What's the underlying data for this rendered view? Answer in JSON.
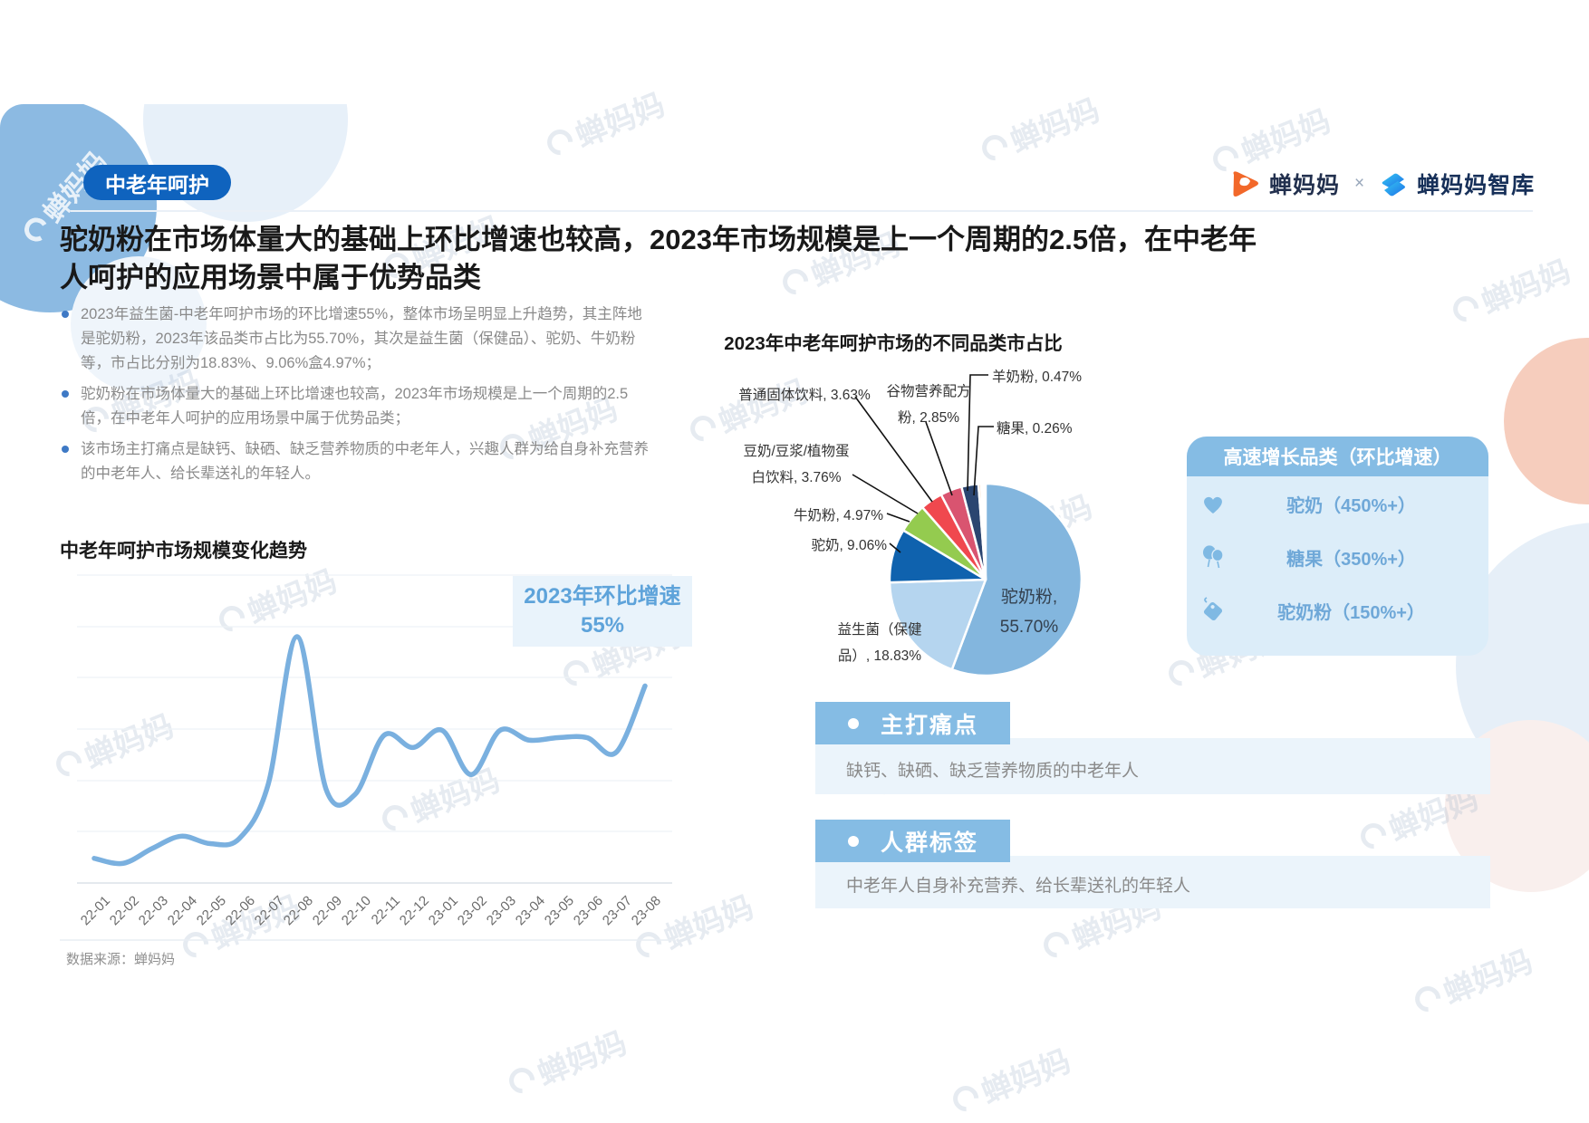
{
  "page": {
    "tag": "中老年呵护",
    "title": "驼奶粉在市场体量大的基础上环比增速也较高，2023年市场规模是上一个周期的2.5倍，在中老年人呵护的应用场景中属于优势品类",
    "source": "数据来源：蝉妈妈",
    "watermark": "蝉妈妈"
  },
  "brand": {
    "left": "蝉妈妈",
    "sep": "×",
    "right": "蝉妈妈智库"
  },
  "bullets": [
    "2023年益生菌-中老年呵护市场的环比增速55%，整体市场呈明显上升趋势，其主阵地是驼奶粉，2023年该品类市占比为55.70%，其次是益生菌（保健品）、驼奶、牛奶粉等，市占比分别为18.83%、9.06%盒4.97%；",
    "驼奶粉在市场体量大的基础上环比增速也较高，2023年市场规模是上一个周期的2.5倍，在中老年人呵护的应用场景中属于优势品类；",
    "该市场主打痛点是缺钙、缺硒、缺乏营养物质的中老年人，兴趣人群为给自身补充营养的中老年人、给长辈送礼的年轻人。"
  ],
  "line_section": {
    "title": "中老年呵护市场规模变化趋势",
    "badge_line1": "2023年环比增速",
    "badge_line2": "55%"
  },
  "pie_section": {
    "title": "2023年中老年呵护市场的不同品类市占比"
  },
  "growth_panel": {
    "title": "高速增长品类（环比增速）",
    "items": [
      {
        "icon": "heart-icon",
        "label": "驼奶（450%+）"
      },
      {
        "icon": "balloons-icon",
        "label": "糖果（350%+）"
      },
      {
        "icon": "tag-icon",
        "label": "驼奶粉（150%+）"
      }
    ]
  },
  "pain_point": {
    "title": "主打痛点",
    "body": "缺钙、缺硒、缺乏营养物质的中老年人"
  },
  "audience": {
    "title": "人群标签",
    "body": "中老年人自身补充营养、给长辈送礼的年轻人"
  },
  "colors": {
    "accent_blue": "#85BCE4",
    "panel_light": "#EBF4FB",
    "badge_navy": "#0F63BE",
    "line_blue": "#7AB0DF",
    "growth_text": "#6FA8D8",
    "brand_orange": "#F2682A"
  },
  "chart_data": [
    {
      "type": "line",
      "title": "中老年呵护市场规模变化趋势",
      "x": [
        "22-01",
        "22-02",
        "22-03",
        "22-04",
        "22-05",
        "22-06",
        "22-07",
        "22-08",
        "22-09",
        "22-10",
        "22-11",
        "22-12",
        "23-01",
        "23-02",
        "23-03",
        "23-04",
        "23-05",
        "23-06",
        "23-07",
        "23-08"
      ],
      "values": [
        10,
        8,
        14,
        19,
        16,
        18,
        40,
        100,
        38,
        36,
        60,
        55,
        62,
        44,
        62,
        58,
        59,
        59,
        53,
        80
      ],
      "xlabel": "",
      "ylabel": "",
      "ylim": [
        0,
        100
      ],
      "y_axis_visible": false,
      "grid": true,
      "annotation": "2023年环比增速 55%",
      "line_color": "#7AB0DF"
    },
    {
      "type": "pie",
      "title": "2023年中老年呵护市场的不同品类市占比",
      "slices": [
        {
          "label": "驼奶粉",
          "value": 55.7,
          "color": "#83B6DE"
        },
        {
          "label": "益生菌（保健品）",
          "value": 18.83,
          "color": "#B5D5EF"
        },
        {
          "label": "驼奶",
          "value": 9.06,
          "color": "#0F62AE"
        },
        {
          "label": "牛奶粉",
          "value": 4.97,
          "color": "#94CB4F"
        },
        {
          "label": "豆奶/豆浆/植物蛋白饮料",
          "value": 3.76,
          "color": "#F0484E"
        },
        {
          "label": "普通固体饮料",
          "value": 3.63,
          "color": "#D95470"
        },
        {
          "label": "谷物营养配方粉",
          "value": 2.85,
          "color": "#2B4570"
        },
        {
          "label": "羊奶粉",
          "value": 0.47,
          "color": "#F4C9A2"
        },
        {
          "label": "糖果",
          "value": 0.26,
          "color": "#EFA3B4"
        }
      ],
      "start_angle_deg": 0,
      "direction": "clockwise",
      "legend_position": "none"
    }
  ]
}
